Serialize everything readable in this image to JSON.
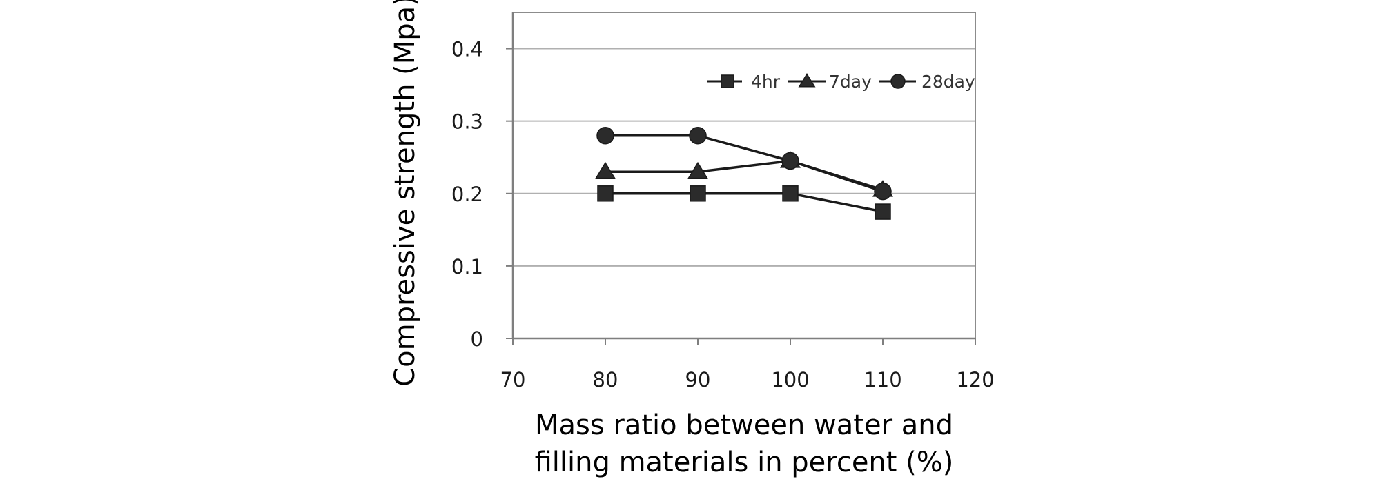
{
  "chart_data": {
    "type": "line",
    "title": "",
    "xlabel": [
      "Mass ratio between water and",
      "filling materials in percent (%)"
    ],
    "ylabel": "Compressive strength (Mpa)",
    "xlim": [
      70,
      120
    ],
    "ylim": [
      0,
      0.45
    ],
    "x_ticks": [
      "70",
      "80",
      "90",
      "100",
      "110",
      "120"
    ],
    "y_ticks": [
      "0",
      "0.1",
      "0.2",
      "0.3",
      "0.4"
    ],
    "grid": "horizontal",
    "legend_position": "top-right",
    "x": [
      80,
      90,
      100,
      110
    ],
    "series": [
      {
        "name": "4hr",
        "marker": "square",
        "values": [
          0.2,
          0.2,
          0.2,
          0.175
        ]
      },
      {
        "name": "7day",
        "marker": "triangle",
        "values": [
          0.23,
          0.23,
          0.245,
          0.205
        ]
      },
      {
        "name": "28day",
        "marker": "circle",
        "values": [
          0.28,
          0.28,
          0.245,
          0.203
        ]
      }
    ],
    "colors": {
      "line": "#1a1a1a",
      "marker": "#2b2b2b",
      "grid": "#b0b0b0",
      "axis": "#7f7f7f"
    }
  }
}
